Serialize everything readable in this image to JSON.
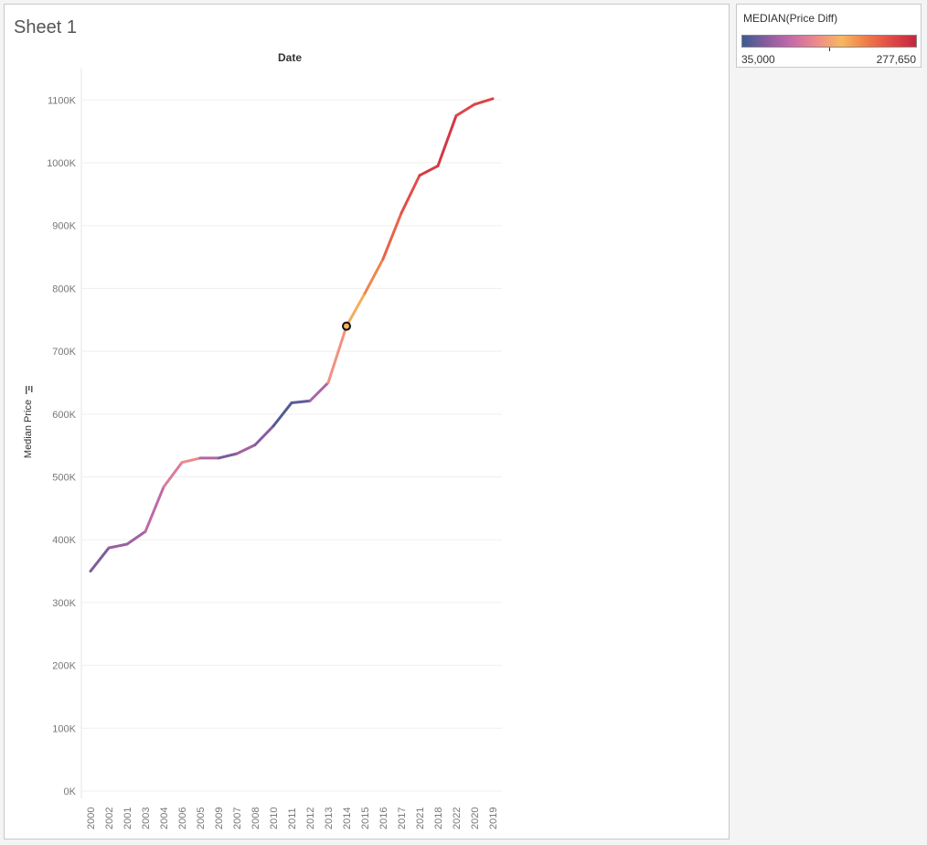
{
  "sheet": {
    "title": "Sheet 1"
  },
  "legend": {
    "title": "MEDIAN(Price Diff)",
    "min_label": "35,000",
    "max_label": "277,650",
    "min": 35000,
    "max": 277650,
    "marker_fraction": 0.5,
    "gradient": [
      "#3b5b8f",
      "#8b5c9e",
      "#c66ca8",
      "#ef8a8a",
      "#f5b860",
      "#ef7b4a",
      "#e04a48",
      "#c4263f"
    ]
  },
  "chart_data": {
    "type": "line",
    "title": "",
    "xlabel": "Date",
    "ylabel": "Median Price",
    "ylim": [
      0,
      1150000
    ],
    "y_ticks": [
      0,
      100000,
      200000,
      300000,
      400000,
      500000,
      600000,
      700000,
      800000,
      900000,
      1000000,
      1100000
    ],
    "y_tick_labels": [
      "0K",
      "100K",
      "200K",
      "300K",
      "400K",
      "500K",
      "600K",
      "700K",
      "800K",
      "900K",
      "1000K",
      "1100K"
    ],
    "grid": true,
    "categories": [
      "2000",
      "2002",
      "2001",
      "2003",
      "2004",
      "2006",
      "2005",
      "2009",
      "2007",
      "2008",
      "2010",
      "2011",
      "2012",
      "2013",
      "2014",
      "2015",
      "2016",
      "2017",
      "2021",
      "2018",
      "2022",
      "2020",
      "2019"
    ],
    "values": [
      350000,
      387000,
      393000,
      413000,
      484000,
      523000,
      530000,
      530000,
      537000,
      551000,
      581000,
      618000,
      621000,
      650000,
      740000,
      792000,
      847000,
      920000,
      980000,
      995000,
      1075000,
      1093000,
      1102000
    ],
    "price_diff": [
      50000,
      80000,
      75000,
      90000,
      110000,
      135000,
      140000,
      45000,
      80000,
      85000,
      50000,
      40000,
      60000,
      120000,
      170000,
      190000,
      215000,
      235000,
      245000,
      270000,
      250000,
      245000,
      250000
    ],
    "highlighted_point": "2014"
  }
}
